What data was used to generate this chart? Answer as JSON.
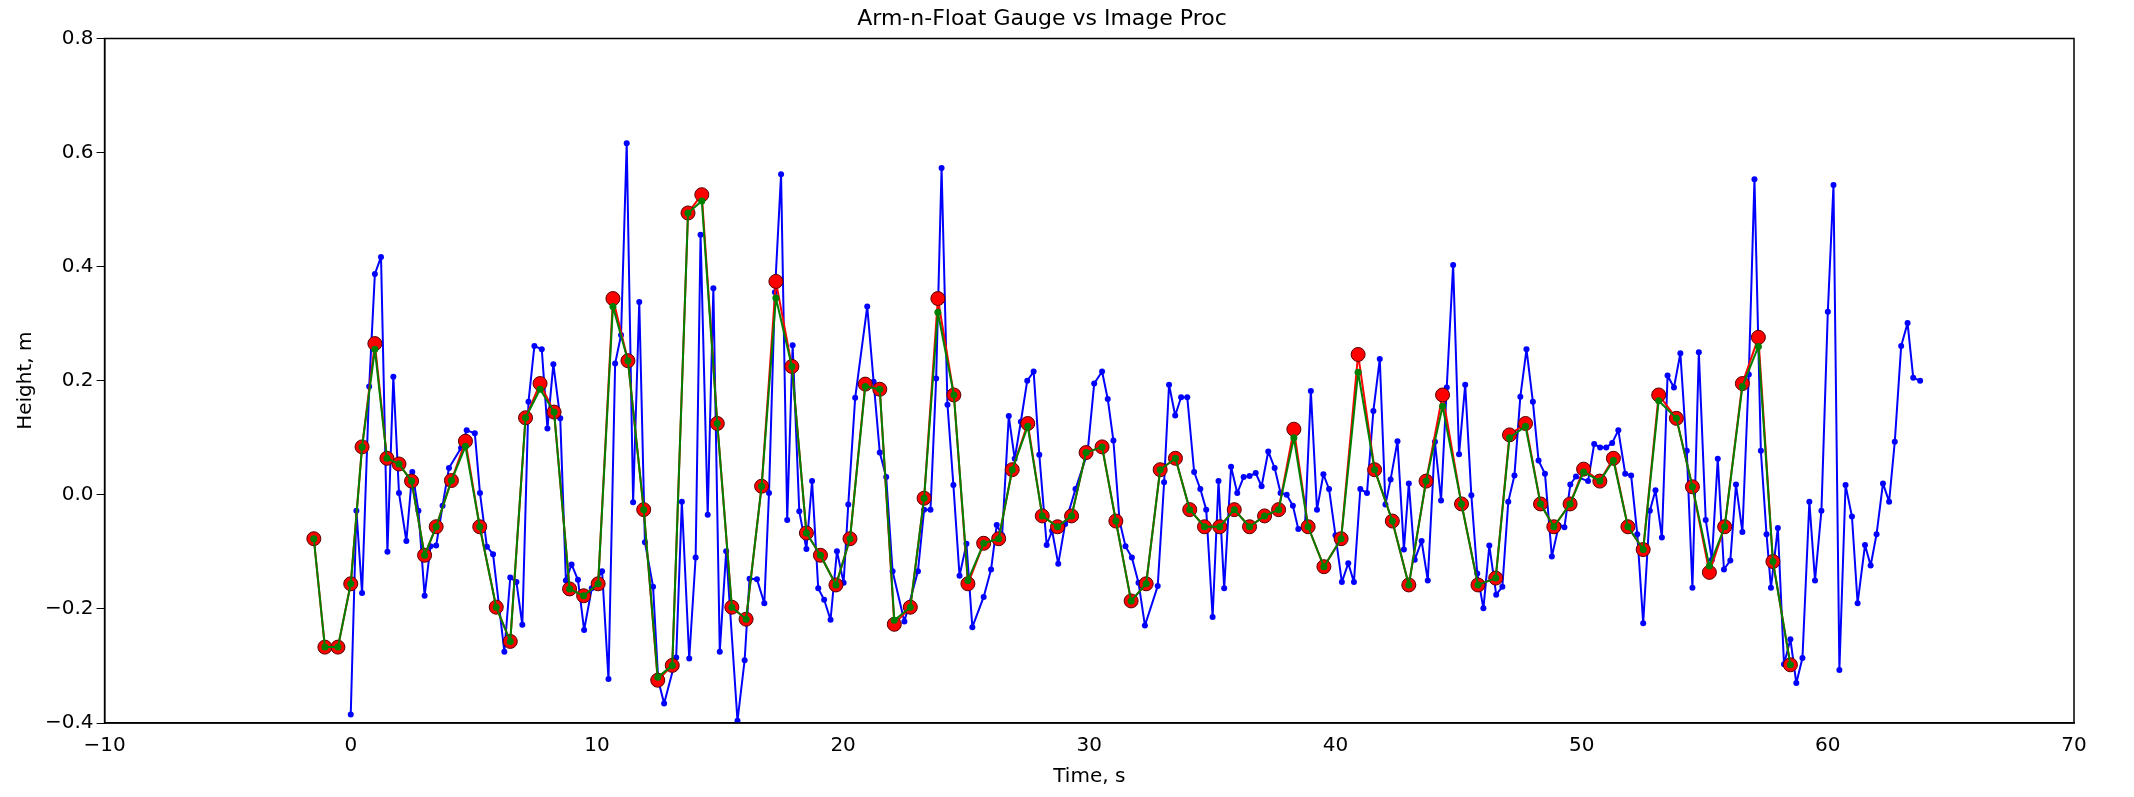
{
  "chart_data": {
    "type": "line",
    "title": "Arm-n-Float Gauge vs Image Proc",
    "xlabel": "Time, s",
    "ylabel": "Height, m",
    "xlim": [
      -10,
      70
    ],
    "xticks": [
      {
        "value": -10,
        "label": "−10"
      },
      0,
      10,
      20,
      30,
      40,
      50,
      60,
      70
    ],
    "ylim": [
      -0.4,
      0.8
    ],
    "yticks": [
      {
        "value": -0.4,
        "label": "−0.4"
      },
      {
        "value": -0.2,
        "label": "−0.2"
      },
      {
        "value": 0,
        "label": "0.0"
      },
      0.2,
      0.4,
      0.6,
      0.8
    ],
    "grid": false,
    "legend": false,
    "marker": "circle",
    "line_style": "solid",
    "series": [
      {
        "color": "#0000ff",
        "x": [
          0,
          0.23,
          0.46,
          0.75,
          0.98,
          1.23,
          1.49,
          1.73,
          1.96,
          2.26,
          2.5,
          2.75,
          3.0,
          3.24,
          3.47,
          3.73,
          3.99,
          4.48,
          4.71,
          5.04,
          5.25,
          5.53,
          5.78,
          6.24,
          6.48,
          6.73,
          6.97,
          7.22,
          7.46,
          7.76,
          7.99,
          8.23,
          8.51,
          8.74,
          8.97,
          9.23,
          9.48,
          9.79,
          10.21,
          10.47,
          10.74,
          10.98,
          11.21,
          11.47,
          11.72,
          11.95,
          12.28,
          12.49,
          12.73,
          13.22,
          13.45,
          13.75,
          14.01,
          14.21,
          14.5,
          14.73,
          14.99,
          15.25,
          15.71,
          16.0,
          16.2,
          16.5,
          16.8,
          16.99,
          17.23,
          17.48,
          17.73,
          17.95,
          18.22,
          18.51,
          18.74,
          18.99,
          19.23,
          19.49,
          19.75,
          20.02,
          20.21,
          20.49,
          20.98,
          21.24,
          21.49,
          21.75,
          22.01,
          22.49,
          23.04,
          23.29,
          23.55,
          23.78,
          24.0,
          24.24,
          24.48,
          24.73,
          25.01,
          25.25,
          25.71,
          26.01,
          26.24,
          26.46,
          26.73,
          26.97,
          27.22,
          27.48,
          27.74,
          27.97,
          28.27,
          28.49,
          28.74,
          29.02,
          29.44,
          29.93,
          30.2,
          30.52,
          30.75,
          30.98,
          31.23,
          31.47,
          31.73,
          32.0,
          32.26,
          32.78,
          33.04,
          33.24,
          33.49,
          33.73,
          33.98,
          34.26,
          34.51,
          34.75,
          35.01,
          35.25,
          35.48,
          35.76,
          36.01,
          36.27,
          36.51,
          36.76,
          37.0,
          37.27,
          37.53,
          37.77,
          38.02,
          38.27,
          38.49,
          38.76,
          39.0,
          39.25,
          39.51,
          39.74,
          40.0,
          40.26,
          40.52,
          40.75,
          41.01,
          41.28,
          41.54,
          41.8,
          42.03,
          42.24,
          42.52,
          42.78,
          42.98,
          43.22,
          43.5,
          43.75,
          44.04,
          44.29,
          44.52,
          44.78,
          45.02,
          45.27,
          45.52,
          45.76,
          46.01,
          46.25,
          46.53,
          46.78,
          47.02,
          47.27,
          47.51,
          47.76,
          48.02,
          48.25,
          48.51,
          48.79,
          49.07,
          49.3,
          49.54,
          49.77,
          50.26,
          50.51,
          50.75,
          51.0,
          51.24,
          51.49,
          51.77,
          52.01,
          52.26,
          52.5,
          52.77,
          53.0,
          53.26,
          53.49,
          53.75,
          54.01,
          54.27,
          54.5,
          54.76,
          55.04,
          55.29,
          55.53,
          55.78,
          56.04,
          56.27,
          56.53,
          56.79,
          57.02,
          57.28,
          57.51,
          57.69,
          57.97,
          58.22,
          58.48,
          58.72,
          58.97,
          59.25,
          59.48,
          59.74,
          60.0,
          60.23,
          60.47,
          60.72,
          60.98,
          61.21,
          61.51,
          61.74,
          61.98,
          62.24,
          62.49,
          62.72,
          62.98,
          63.24,
          63.47,
          63.75
        ],
        "values": [
          -0.385,
          -0.028,
          -0.172,
          0.19,
          0.387,
          0.417,
          -0.1,
          0.207,
          0.003,
          -0.081,
          0.04,
          -0.028,
          -0.177,
          -0.09,
          -0.089,
          -0.019,
          0.047,
          0.082,
          0.113,
          0.108,
          0.003,
          -0.091,
          -0.104,
          -0.275,
          -0.145,
          -0.153,
          -0.228,
          0.163,
          0.261,
          0.255,
          0.116,
          0.229,
          0.134,
          -0.15,
          -0.122,
          -0.149,
          -0.237,
          -0.164,
          -0.134,
          -0.323,
          0.23,
          0.28,
          0.616,
          -0.013,
          0.338,
          -0.083,
          -0.161,
          -0.325,
          -0.366,
          -0.285,
          -0.012,
          -0.287,
          -0.11,
          0.456,
          -0.035,
          0.362,
          -0.275,
          -0.099,
          -0.396,
          -0.29,
          -0.147,
          -0.148,
          -0.19,
          0.003,
          0.355,
          0.562,
          -0.044,
          0.262,
          -0.029,
          -0.095,
          0.024,
          -0.164,
          -0.184,
          -0.219,
          -0.099,
          -0.154,
          -0.017,
          0.17,
          0.33,
          0.198,
          0.074,
          0.031,
          -0.134,
          -0.222,
          -0.134,
          -0.026,
          -0.026,
          0.204,
          0.573,
          0.158,
          0.017,
          -0.142,
          -0.086,
          -0.232,
          -0.179,
          -0.131,
          -0.053,
          -0.071,
          0.138,
          0.063,
          0.128,
          0.2,
          0.216,
          0.07,
          -0.088,
          -0.063,
          -0.121,
          -0.051,
          0.01,
          0.074,
          0.195,
          0.216,
          0.168,
          0.095,
          -0.046,
          -0.09,
          -0.11,
          -0.154,
          -0.229,
          -0.16,
          0.022,
          0.193,
          0.139,
          0.171,
          0.171,
          0.04,
          0.01,
          -0.026,
          -0.214,
          0.024,
          -0.164,
          0.049,
          0.003,
          0.031,
          0.033,
          0.038,
          0.015,
          0.076,
          0.047,
          0.003,
          0,
          -0.019,
          -0.06,
          -0.057,
          0.182,
          -0.026,
          0.036,
          0.01,
          -0.071,
          -0.153,
          -0.12,
          -0.153,
          0.01,
          0.003,
          0.147,
          0.238,
          -0.017,
          0.027,
          0.094,
          -0.096,
          0.02,
          -0.114,
          -0.081,
          -0.15,
          0.093,
          -0.01,
          0.188,
          0.403,
          0.071,
          0.193,
          -0.001,
          -0.138,
          -0.199,
          -0.089,
          -0.175,
          -0.161,
          -0.012,
          0.034,
          0.172,
          0.255,
          0.163,
          0.06,
          0.037,
          -0.108,
          -0.054,
          -0.057,
          0.018,
          0.032,
          0.024,
          0.089,
          0.083,
          0.083,
          0.091,
          0.113,
          0.037,
          0.034,
          -0.069,
          -0.225,
          -0.028,
          0.008,
          -0.075,
          0.209,
          0.188,
          0.248,
          0.077,
          -0.163,
          0.25,
          -0.044,
          -0.114,
          0.063,
          -0.131,
          -0.115,
          0.018,
          -0.065,
          0.211,
          0.553,
          0.077,
          -0.069,
          -0.163,
          -0.058,
          -0.297,
          -0.253,
          -0.33,
          -0.286,
          -0.012,
          -0.15,
          -0.028,
          0.321,
          0.543,
          -0.307,
          0.017,
          -0.038,
          -0.19,
          -0.088,
          -0.124,
          -0.069,
          0.02,
          -0.012,
          0.093,
          0.261,
          0.301,
          0.205,
          0.2
        ]
      },
      {
        "color": "#ff0000",
        "marker": "circle",
        "x": [
          -1.5,
          -1.05,
          -0.52,
          0,
          0.46,
          0.98,
          1.47,
          1.96,
          2.47,
          3.0,
          3.47,
          4.09,
          4.66,
          5.24,
          5.91,
          6.48,
          7.1,
          7.69,
          8.26,
          8.89,
          9.46,
          10.05,
          10.65,
          11.26,
          11.9,
          12.47,
          13.06,
          13.7,
          14.26,
          14.89,
          15.48,
          16.06,
          16.69,
          17.27,
          17.92,
          18.51,
          19.08,
          19.71,
          20.28,
          20.9,
          21.49,
          22.08,
          22.73,
          23.29,
          23.85,
          24.5,
          25.07,
          25.71,
          26.32,
          26.87,
          27.5,
          28.09,
          28.71,
          29.28,
          29.87,
          30.52,
          31.08,
          31.7,
          32.31,
          32.88,
          33.5,
          34.08,
          34.68,
          35.3,
          35.89,
          36.51,
          37.12,
          37.69,
          38.31,
          38.89,
          39.53,
          40.23,
          40.92,
          41.59,
          42.31,
          42.98,
          43.68,
          44.35,
          45.12,
          45.79,
          46.51,
          47.07,
          47.72,
          48.33,
          48.87,
          49.53,
          50.08,
          50.74,
          51.29,
          51.88,
          52.5,
          53.13,
          53.85,
          54.5,
          55.19,
          55.81,
          56.53,
          57.18,
          57.77,
          58.48
        ],
        "values": [
          -0.077,
          -0.267,
          -0.267,
          -0.156,
          0.084,
          0.265,
          0.064,
          0.054,
          0.024,
          -0.106,
          -0.056,
          0.025,
          0.094,
          -0.056,
          -0.197,
          -0.257,
          0.135,
          0.195,
          0.145,
          -0.165,
          -0.177,
          -0.156,
          0.344,
          0.235,
          -0.026,
          -0.325,
          -0.299,
          0.494,
          0.526,
          0.125,
          -0.197,
          -0.218,
          0.015,
          0.374,
          0.225,
          -0.067,
          -0.106,
          -0.158,
          -0.077,
          0.194,
          0.185,
          -0.227,
          -0.197,
          -0.006,
          0.344,
          0.175,
          -0.156,
          -0.085,
          -0.077,
          0.044,
          0.125,
          -0.037,
          -0.056,
          -0.037,
          0.074,
          0.084,
          -0.046,
          -0.186,
          -0.156,
          0.044,
          0.064,
          -0.026,
          -0.056,
          -0.056,
          -0.026,
          -0.056,
          -0.037,
          -0.026,
          0.115,
          -0.056,
          -0.126,
          -0.077,
          0.246,
          0.044,
          -0.046,
          -0.158,
          0.024,
          0.175,
          -0.016,
          -0.158,
          -0.146,
          0.105,
          0.125,
          -0.016,
          -0.056,
          -0.016,
          0.045,
          0.024,
          0.064,
          -0.056,
          -0.096,
          0.175,
          0.134,
          0.014,
          -0.136,
          -0.056,
          0.195,
          0.276,
          -0.117,
          -0.298
        ]
      },
      {
        "color": "#008000",
        "marker": "circle",
        "x": [
          -1.5,
          -1.05,
          -0.52,
          0,
          0.46,
          0.98,
          1.47,
          1.96,
          2.47,
          3.0,
          3.47,
          4.09,
          4.66,
          5.24,
          5.91,
          6.48,
          7.1,
          7.69,
          8.26,
          8.89,
          9.46,
          10.05,
          10.65,
          11.26,
          11.9,
          12.47,
          13.06,
          13.7,
          14.26,
          14.89,
          15.48,
          16.06,
          16.69,
          17.27,
          17.92,
          18.51,
          19.08,
          19.71,
          20.28,
          20.9,
          21.49,
          22.08,
          22.73,
          23.29,
          23.85,
          24.5,
          25.07,
          25.71,
          26.32,
          26.87,
          27.5,
          28.09,
          28.71,
          29.28,
          29.87,
          30.52,
          31.08,
          31.7,
          32.31,
          32.88,
          33.5,
          34.08,
          34.68,
          35.3,
          35.89,
          36.51,
          37.12,
          37.69,
          38.31,
          38.89,
          39.53,
          40.23,
          40.92,
          41.59,
          42.31,
          42.98,
          43.68,
          44.35,
          45.12,
          45.79,
          46.51,
          47.07,
          47.72,
          48.33,
          48.87,
          49.53,
          50.08,
          50.74,
          51.29,
          51.88,
          52.5,
          53.13,
          53.85,
          54.5,
          55.19,
          55.81,
          56.53,
          57.18,
          57.77,
          58.48
        ],
        "values": [
          -0.077,
          -0.267,
          -0.267,
          -0.156,
          0.084,
          0.255,
          0.064,
          0.054,
          0.024,
          -0.106,
          -0.056,
          0.025,
          0.085,
          -0.056,
          -0.197,
          -0.257,
          0.135,
          0.185,
          0.145,
          -0.165,
          -0.177,
          -0.156,
          0.33,
          0.235,
          -0.026,
          -0.32,
          -0.299,
          0.494,
          0.515,
          0.125,
          -0.197,
          -0.218,
          0.015,
          0.345,
          0.225,
          -0.067,
          -0.106,
          -0.158,
          -0.077,
          0.19,
          0.185,
          -0.22,
          -0.197,
          -0.006,
          0.32,
          0.175,
          -0.15,
          -0.085,
          -0.077,
          0.044,
          0.12,
          -0.037,
          -0.056,
          -0.037,
          0.074,
          0.084,
          -0.046,
          -0.186,
          -0.156,
          0.044,
          0.064,
          -0.026,
          -0.056,
          -0.056,
          -0.026,
          -0.056,
          -0.037,
          -0.026,
          0.1,
          -0.056,
          -0.126,
          -0.077,
          0.215,
          0.044,
          -0.046,
          -0.158,
          0.024,
          0.155,
          -0.016,
          -0.158,
          -0.146,
          0.1,
          0.12,
          -0.016,
          -0.056,
          -0.016,
          0.04,
          0.024,
          0.06,
          -0.056,
          -0.096,
          0.165,
          0.134,
          0.014,
          -0.125,
          -0.056,
          0.19,
          0.26,
          -0.117,
          -0.298
        ]
      }
    ]
  }
}
